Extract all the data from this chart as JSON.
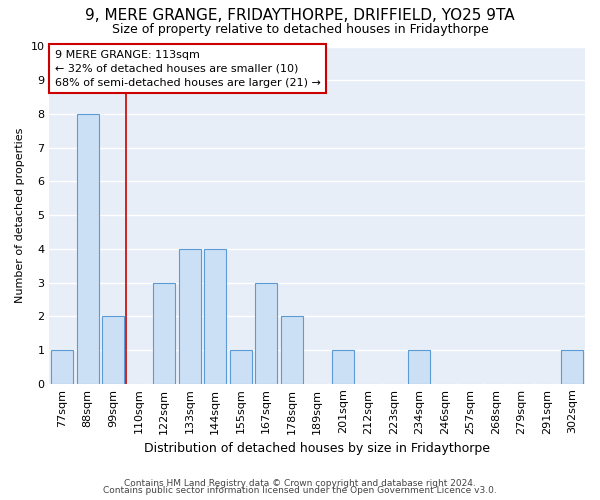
{
  "title1": "9, MERE GRANGE, FRIDAYTHORPE, DRIFFIELD, YO25 9TA",
  "title2": "Size of property relative to detached houses in Fridaythorpe",
  "xlabel": "Distribution of detached houses by size in Fridaythorpe",
  "ylabel": "Number of detached properties",
  "categories": [
    "77sqm",
    "88sqm",
    "99sqm",
    "110sqm",
    "122sqm",
    "133sqm",
    "144sqm",
    "155sqm",
    "167sqm",
    "178sqm",
    "189sqm",
    "201sqm",
    "212sqm",
    "223sqm",
    "234sqm",
    "246sqm",
    "257sqm",
    "268sqm",
    "279sqm",
    "291sqm",
    "302sqm"
  ],
  "values": [
    1,
    8,
    2,
    0,
    3,
    4,
    4,
    1,
    3,
    2,
    0,
    1,
    0,
    0,
    1,
    0,
    0,
    0,
    0,
    0,
    1
  ],
  "bar_color": "#cce0f5",
  "bar_edge_color": "#5b9bd5",
  "redline_x": 2.5,
  "annotation_line1": "9 MERE GRANGE: 113sqm",
  "annotation_line2": "← 32% of detached houses are smaller (10)",
  "annotation_line3": "68% of semi-detached houses are larger (21) →",
  "annotation_box_color": "#ffffff",
  "annotation_box_edge": "#cc0000",
  "footnote1": "Contains HM Land Registry data © Crown copyright and database right 2024.",
  "footnote2": "Contains public sector information licensed under the Open Government Licence v3.0.",
  "ylim": [
    0,
    10
  ],
  "yticks": [
    0,
    1,
    2,
    3,
    4,
    5,
    6,
    7,
    8,
    9,
    10
  ],
  "plot_bg": "#e8eef8",
  "fig_bg": "#ffffff",
  "grid_color": "#ffffff",
  "title1_fontsize": 11,
  "title2_fontsize": 9,
  "xlabel_fontsize": 9,
  "ylabel_fontsize": 8,
  "tick_fontsize": 8,
  "footnote_fontsize": 6.5
}
